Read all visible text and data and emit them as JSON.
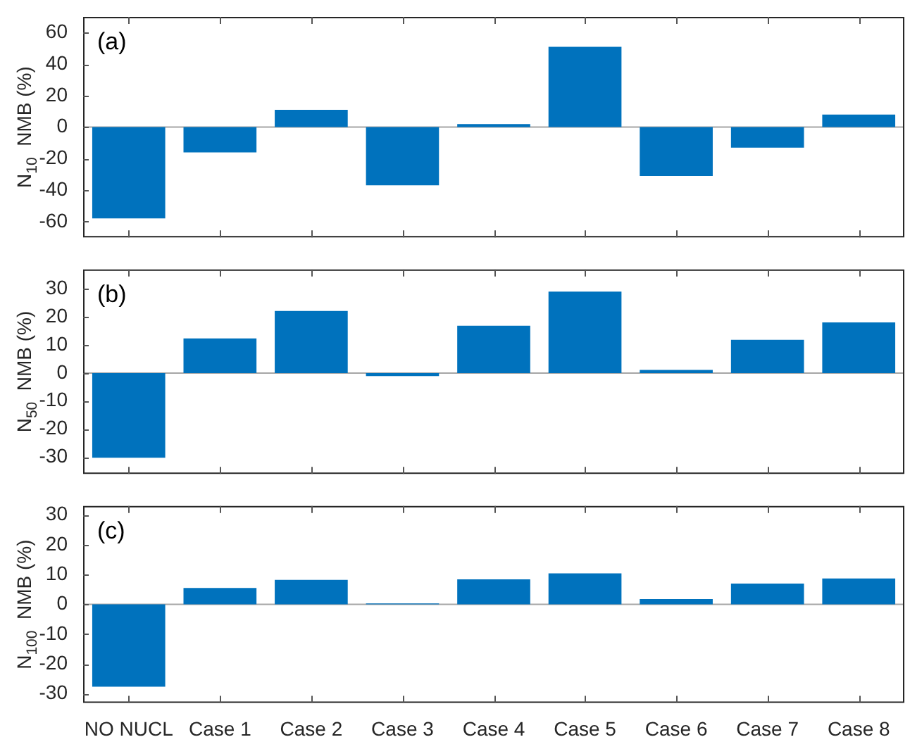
{
  "chart_data": [
    {
      "type": "bar",
      "categories": [
        null,
        null,
        null,
        null,
        null,
        null,
        null,
        null,
        null
      ],
      "values": [
        -58,
        -16,
        11,
        -37,
        2,
        51,
        -31,
        -13,
        8
      ],
      "color": "#0072bd",
      "ylabel": "N$_{10}$  NMB (%)",
      "ylim": [
        -70,
        70
      ],
      "yticks": [
        -60,
        -40,
        -20,
        0,
        20,
        40,
        60
      ],
      "annotations": [
        "(a)"
      ],
      "ref_lines": [
        {
          "axis": "y",
          "value": 0,
          "color": "#a6a6a6"
        }
      ],
      "tick_labels": "y"
    },
    {
      "type": "bar",
      "categories": [
        null,
        null,
        null,
        null,
        null,
        null,
        null,
        null,
        null
      ],
      "values": [
        -30.2,
        12.4,
        22.2,
        -1.1,
        16.9,
        29.1,
        1.1,
        11.9,
        18.1
      ],
      "color": "#0072bd",
      "ylabel": "N$_{50}$  NMB (%)",
      "ylim": [
        -36,
        37
      ],
      "yticks": [
        -30,
        -20,
        -10,
        0,
        10,
        20,
        30
      ],
      "annotations": [
        "(b)"
      ],
      "ref_lines": [
        {
          "axis": "y",
          "value": 0,
          "color": "#a6a6a6"
        }
      ],
      "tick_labels": "y"
    },
    {
      "type": "bar",
      "categories": [
        "NO NUCL",
        "Case 1",
        "Case 2",
        "Case 3",
        "Case 4",
        "Case 5",
        "Case 6",
        "Case 7",
        "Case 8"
      ],
      "values": [
        -27.6,
        5.5,
        8.2,
        0.3,
        8.4,
        10.4,
        1.8,
        7,
        8.7
      ],
      "color": "#0072bd",
      "ylabel": "N$_{100}$  NMB (%)",
      "ylim": [
        -33,
        33
      ],
      "yticks": [
        -30,
        -20,
        -10,
        0,
        10,
        20,
        30
      ],
      "annotations": [
        "(c)"
      ],
      "ref_lines": [
        {
          "axis": "y",
          "value": 0,
          "color": "#a6a6a6"
        }
      ]
    }
  ]
}
